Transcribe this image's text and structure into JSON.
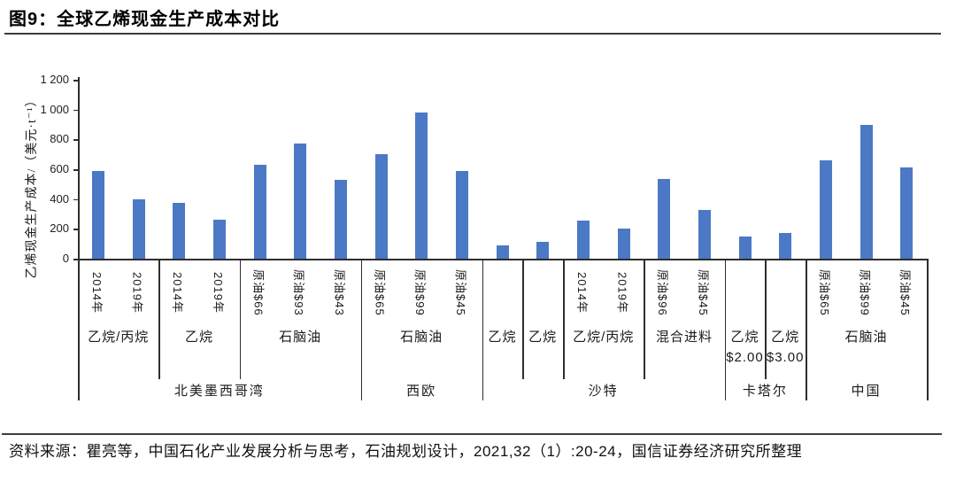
{
  "page": {
    "title": "图9：全球乙烯现金生产成本对比",
    "source_text": "资料来源：瞿亮等，中国石化产业发展分析与思考，石油规划设计，2021,32（1）:20-24，国信证券经济研究所整理"
  },
  "colors": {
    "bar": "#4b79c5",
    "axis": "#2e2e2e",
    "rule": "#3d3d3d"
  },
  "chart_data": {
    "type": "bar",
    "title": "全球乙烯现金生产成本对比",
    "ylabel": "乙烯现金生产成本/（美元·t⁻¹）",
    "ylim": [
      0,
      1200
    ],
    "grid": false,
    "legend": "none",
    "yticks": [
      {
        "label": "1 200",
        "value": 1200
      },
      {
        "label": "1 000",
        "value": 1000
      },
      {
        "label": "800",
        "value": 800
      },
      {
        "label": "600",
        "value": 600
      },
      {
        "label": "400",
        "value": 400
      },
      {
        "label": "200",
        "value": 200
      },
      {
        "label": "0",
        "value": 0
      }
    ],
    "regions": [
      {
        "label": "北美墨西哥湾",
        "groups": [
          {
            "label": "乙烷/丙烷",
            "bars": [
              {
                "label": "2014年",
                "value": 590
              },
              {
                "label": "2019年",
                "value": 400
              }
            ]
          },
          {
            "label": "乙烷",
            "bars": [
              {
                "label": "2014年",
                "value": 375
              },
              {
                "label": "2019年",
                "value": 260
              }
            ]
          },
          {
            "label": "石脑油",
            "bars": [
              {
                "label": "原油$66",
                "value": 630
              },
              {
                "label": "原油$93",
                "value": 775
              },
              {
                "label": "原油$43",
                "value": 530
              }
            ]
          }
        ]
      },
      {
        "label": "西欧",
        "groups": [
          {
            "label": "石脑油",
            "bars": [
              {
                "label": "原油$65",
                "value": 700
              },
              {
                "label": "原油$99",
                "value": 980
              },
              {
                "label": "原油$45",
                "value": 590
              }
            ]
          }
        ]
      },
      {
        "label": "沙特",
        "groups": [
          {
            "label": "乙烷",
            "bars": [
              {
                "label": "",
                "value": 90
              }
            ]
          },
          {
            "label": "乙烷",
            "bars": [
              {
                "label": "",
                "value": 115
              }
            ]
          },
          {
            "label": "乙烷/丙烷",
            "bars": [
              {
                "label": "2014年",
                "value": 255
              },
              {
                "label": "2019年",
                "value": 200
              }
            ]
          },
          {
            "label": "混合进料",
            "bars": [
              {
                "label": "原油$96",
                "value": 535
              },
              {
                "label": "原油$45",
                "value": 325
              }
            ]
          }
        ]
      },
      {
        "label": "卡塔尔",
        "groups": [
          {
            "label": "乙烷",
            "label2": "$2.00",
            "bars": [
              {
                "label": "",
                "value": 150
              }
            ]
          },
          {
            "label": "乙烷",
            "label2": "$3.00",
            "bars": [
              {
                "label": "",
                "value": 175
              }
            ]
          }
        ]
      },
      {
        "label": "中国",
        "groups": [
          {
            "label": "石脑油",
            "bars": [
              {
                "label": "原油$65",
                "value": 660
              },
              {
                "label": "原油$99",
                "value": 895
              },
              {
                "label": "原油$45",
                "value": 610
              }
            ]
          }
        ]
      }
    ]
  }
}
